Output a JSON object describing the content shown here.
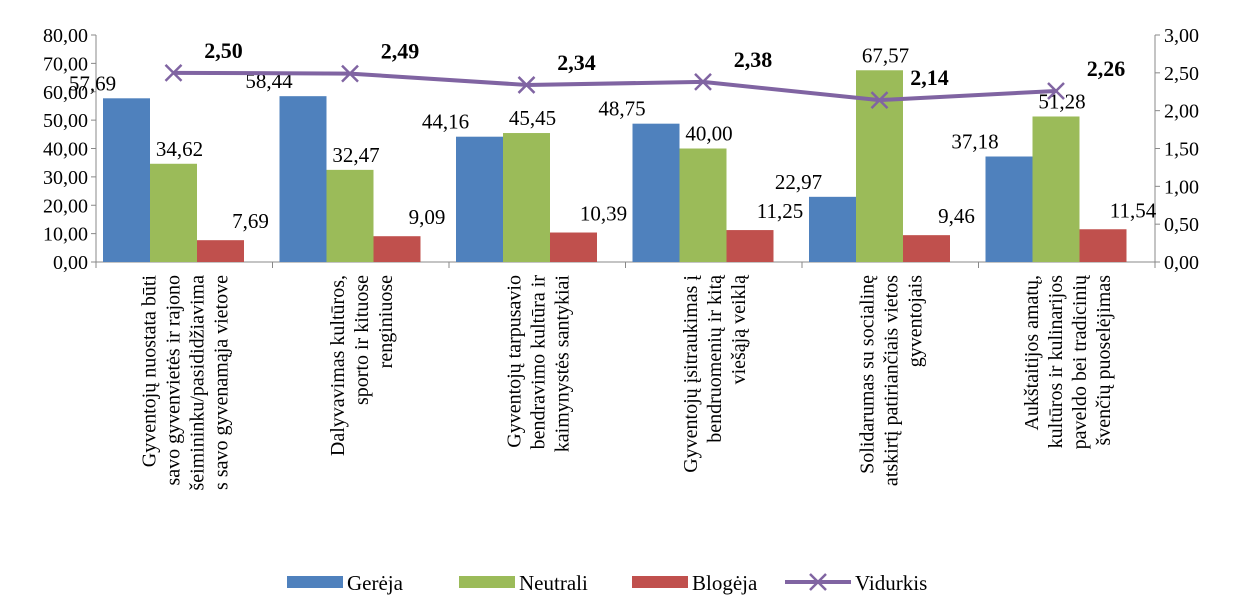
{
  "chart_data": {
    "type": "bar",
    "categories": [
      [
        "Gyventojų nuostata būti",
        "savo gyvenvietės ir rajono",
        "šeimininku/pasididžiavima",
        "s savo gyvenamąja vietove"
      ],
      [
        "Dalyvavimas kultūros,",
        "sporto ir kituose",
        "renginiuose"
      ],
      [
        "Gyventojų tarpusavio",
        "bendravimo kultūra ir",
        "kaimynystės santykiai"
      ],
      [
        "Gyventojų įsitraukimas į",
        "bendruomenių ir kitą",
        "viešąją veiklą"
      ],
      [
        "Solidarumas su socialinę",
        "atskirtį patiriančiais vietos",
        "gyventojais"
      ],
      [
        "Aukštaitijos amatų,",
        "kultūros ir kulinarijos",
        "paveldo bei tradicinių",
        "švenčių puoselėjimas"
      ]
    ],
    "series": [
      {
        "name": "Gerėja",
        "values": [
          57.69,
          58.44,
          44.16,
          48.75,
          22.97,
          37.18
        ],
        "labels": [
          "57,69",
          "58,44",
          "44,16",
          "48,75",
          "22,97",
          "37,18"
        ]
      },
      {
        "name": "Neutrali",
        "values": [
          34.62,
          32.47,
          45.45,
          40.0,
          67.57,
          51.28
        ],
        "labels": [
          "34,62",
          "32,47",
          "45,45",
          "40,00",
          "67,57",
          "51,28"
        ]
      },
      {
        "name": "Blogėja",
        "values": [
          7.69,
          9.09,
          10.39,
          11.25,
          9.46,
          11.54
        ],
        "labels": [
          "7,69",
          "9,09",
          "10,39",
          "11,25",
          "9,46",
          "11,54"
        ]
      }
    ],
    "line_series": {
      "name": "Vidurkis",
      "values": [
        2.5,
        2.49,
        2.34,
        2.38,
        2.14,
        2.26
      ],
      "labels": [
        "2,50",
        "2,49",
        "2,34",
        "2,38",
        "2,14",
        "2,26"
      ]
    },
    "y_left": {
      "min": 0,
      "max": 80,
      "ticks": [
        "0,00",
        "10,00",
        "20,00",
        "30,00",
        "40,00",
        "50,00",
        "60,00",
        "70,00",
        "80,00"
      ]
    },
    "y_right": {
      "min": 0,
      "max": 3,
      "ticks": [
        "0,00",
        "0,50",
        "1,00",
        "1,50",
        "2,00",
        "2,50",
        "3,00"
      ]
    },
    "legend": "bottom",
    "grid": false,
    "colors": {
      "Gerėja": "#4F81BD",
      "Neutrali": "#9BBB59",
      "Blogėja": "#C0504D",
      "Vidurkis": "#8064A2"
    }
  }
}
